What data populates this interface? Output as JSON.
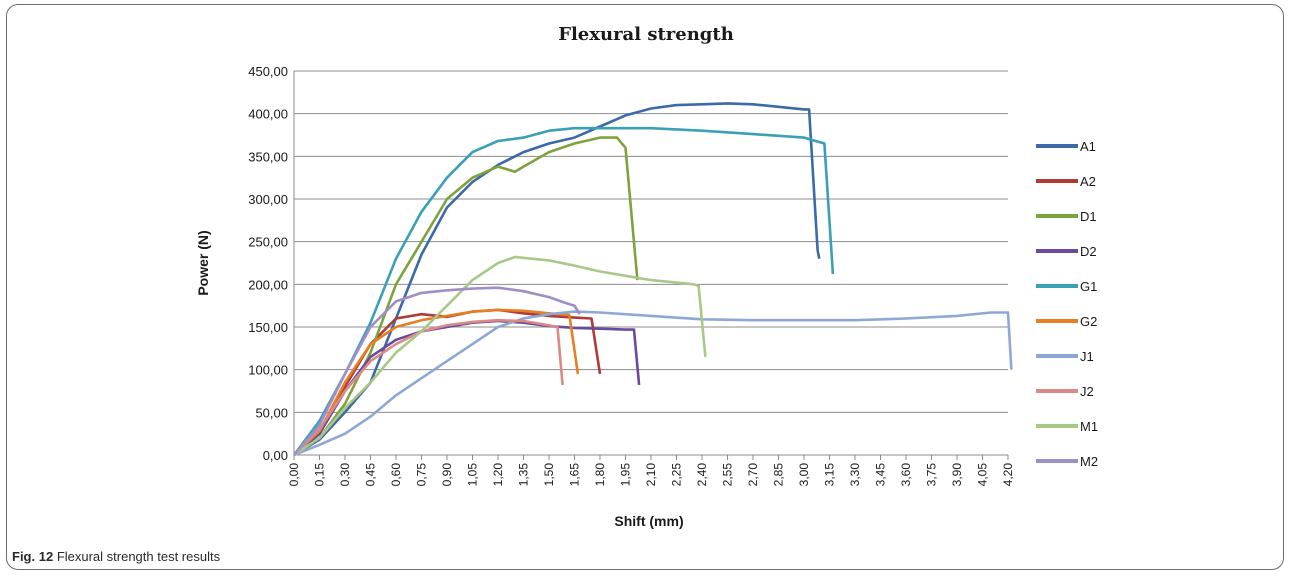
{
  "caption": {
    "label": "Fig. 12",
    "text": "Flexural strength test results"
  },
  "chart_data": {
    "type": "line",
    "title": "Flexural strength",
    "xlabel": "Shift (mm)",
    "ylabel": "Power (N)",
    "xlim": [
      0,
      4.2
    ],
    "ylim": [
      0,
      450
    ],
    "y_ticks": [
      "0,00",
      "50,00",
      "100,00",
      "150,00",
      "200,00",
      "250,00",
      "300,00",
      "350,00",
      "400,00",
      "450,00"
    ],
    "x_ticks": [
      "0,00",
      "0,15",
      "0,30",
      "0,45",
      "0,60",
      "0,75",
      "0,90",
      "1,05",
      "1,20",
      "1,35",
      "1,50",
      "1,65",
      "1,80",
      "1,95",
      "2,10",
      "2,25",
      "2,40",
      "2,55",
      "2,70",
      "2,85",
      "3,00",
      "3,15",
      "3,30",
      "3,45",
      "3,60",
      "3,75",
      "3,90",
      "4,05",
      "4,20"
    ],
    "grid": true,
    "legend_position": "right",
    "series": [
      {
        "name": "A1",
        "color": "#3c6aa8",
        "points": [
          [
            0,
            0
          ],
          [
            0.15,
            18
          ],
          [
            0.3,
            50
          ],
          [
            0.45,
            85
          ],
          [
            0.6,
            160
          ],
          [
            0.75,
            235
          ],
          [
            0.9,
            290
          ],
          [
            1.05,
            320
          ],
          [
            1.2,
            340
          ],
          [
            1.35,
            355
          ],
          [
            1.5,
            365
          ],
          [
            1.65,
            372
          ],
          [
            1.8,
            385
          ],
          [
            1.95,
            398
          ],
          [
            2.1,
            406
          ],
          [
            2.25,
            410
          ],
          [
            2.4,
            411
          ],
          [
            2.55,
            412
          ],
          [
            2.7,
            411
          ],
          [
            2.85,
            408
          ],
          [
            3.0,
            405
          ],
          [
            3.03,
            405
          ],
          [
            3.08,
            240
          ],
          [
            3.09,
            230
          ]
        ]
      },
      {
        "name": "A2",
        "color": "#b03a36",
        "points": [
          [
            0,
            0
          ],
          [
            0.15,
            25
          ],
          [
            0.3,
            80
          ],
          [
            0.45,
            130
          ],
          [
            0.6,
            160
          ],
          [
            0.75,
            165
          ],
          [
            0.9,
            162
          ],
          [
            1.05,
            168
          ],
          [
            1.2,
            170
          ],
          [
            1.35,
            166
          ],
          [
            1.5,
            163
          ],
          [
            1.65,
            161
          ],
          [
            1.75,
            160
          ],
          [
            1.8,
            95
          ]
        ]
      },
      {
        "name": "D1",
        "color": "#7ea33d",
        "points": [
          [
            0,
            0
          ],
          [
            0.15,
            20
          ],
          [
            0.3,
            60
          ],
          [
            0.45,
            120
          ],
          [
            0.6,
            200
          ],
          [
            0.75,
            250
          ],
          [
            0.9,
            300
          ],
          [
            1.05,
            325
          ],
          [
            1.2,
            338
          ],
          [
            1.3,
            332
          ],
          [
            1.35,
            338
          ],
          [
            1.5,
            355
          ],
          [
            1.65,
            365
          ],
          [
            1.8,
            372
          ],
          [
            1.9,
            372
          ],
          [
            1.95,
            360
          ],
          [
            2.02,
            205
          ]
        ]
      },
      {
        "name": "D2",
        "color": "#6a4a9a",
        "points": [
          [
            0,
            0
          ],
          [
            0.15,
            25
          ],
          [
            0.3,
            75
          ],
          [
            0.45,
            115
          ],
          [
            0.6,
            135
          ],
          [
            0.75,
            145
          ],
          [
            0.9,
            150
          ],
          [
            1.05,
            155
          ],
          [
            1.2,
            157
          ],
          [
            1.35,
            155
          ],
          [
            1.5,
            151
          ],
          [
            1.65,
            149
          ],
          [
            1.8,
            148
          ],
          [
            1.95,
            147
          ],
          [
            2.0,
            147
          ],
          [
            2.03,
            82
          ]
        ]
      },
      {
        "name": "G1",
        "color": "#3aa0b8",
        "points": [
          [
            0,
            0
          ],
          [
            0.15,
            40
          ],
          [
            0.3,
            95
          ],
          [
            0.45,
            155
          ],
          [
            0.6,
            230
          ],
          [
            0.75,
            285
          ],
          [
            0.9,
            325
          ],
          [
            1.05,
            355
          ],
          [
            1.2,
            368
          ],
          [
            1.35,
            372
          ],
          [
            1.5,
            380
          ],
          [
            1.65,
            383
          ],
          [
            1.8,
            383
          ],
          [
            2.1,
            383
          ],
          [
            2.4,
            380
          ],
          [
            2.7,
            376
          ],
          [
            3.0,
            372
          ],
          [
            3.12,
            365
          ],
          [
            3.17,
            212
          ]
        ]
      },
      {
        "name": "G2",
        "color": "#e67e22",
        "points": [
          [
            0,
            0
          ],
          [
            0.15,
            28
          ],
          [
            0.3,
            85
          ],
          [
            0.45,
            130
          ],
          [
            0.6,
            150
          ],
          [
            0.75,
            158
          ],
          [
            0.9,
            163
          ],
          [
            1.05,
            168
          ],
          [
            1.2,
            170
          ],
          [
            1.35,
            169
          ],
          [
            1.5,
            166
          ],
          [
            1.62,
            164
          ],
          [
            1.67,
            95
          ]
        ]
      },
      {
        "name": "J1",
        "color": "#8ea8d6",
        "points": [
          [
            0,
            0
          ],
          [
            0.15,
            12
          ],
          [
            0.3,
            25
          ],
          [
            0.45,
            45
          ],
          [
            0.6,
            70
          ],
          [
            0.75,
            90
          ],
          [
            0.9,
            110
          ],
          [
            1.05,
            130
          ],
          [
            1.2,
            150
          ],
          [
            1.35,
            160
          ],
          [
            1.5,
            165
          ],
          [
            1.65,
            168
          ],
          [
            1.8,
            167
          ],
          [
            2.1,
            163
          ],
          [
            2.4,
            159
          ],
          [
            2.7,
            158
          ],
          [
            3.0,
            158
          ],
          [
            3.3,
            158
          ],
          [
            3.6,
            160
          ],
          [
            3.9,
            163
          ],
          [
            4.1,
            167
          ],
          [
            4.2,
            167
          ],
          [
            4.22,
            100
          ]
        ]
      },
      {
        "name": "J2",
        "color": "#d98a88",
        "points": [
          [
            0,
            0
          ],
          [
            0.15,
            30
          ],
          [
            0.3,
            75
          ],
          [
            0.45,
            110
          ],
          [
            0.6,
            130
          ],
          [
            0.75,
            145
          ],
          [
            0.9,
            152
          ],
          [
            1.05,
            156
          ],
          [
            1.2,
            158
          ],
          [
            1.35,
            157
          ],
          [
            1.5,
            152
          ],
          [
            1.55,
            150
          ],
          [
            1.58,
            82
          ]
        ]
      },
      {
        "name": "M1",
        "color": "#a8c888",
        "points": [
          [
            0,
            0
          ],
          [
            0.15,
            20
          ],
          [
            0.3,
            55
          ],
          [
            0.45,
            85
          ],
          [
            0.6,
            120
          ],
          [
            0.75,
            145
          ],
          [
            0.9,
            175
          ],
          [
            1.05,
            205
          ],
          [
            1.2,
            225
          ],
          [
            1.3,
            232
          ],
          [
            1.5,
            228
          ],
          [
            1.65,
            222
          ],
          [
            1.8,
            215
          ],
          [
            1.95,
            210
          ],
          [
            2.1,
            205
          ],
          [
            2.25,
            202
          ],
          [
            2.35,
            200
          ],
          [
            2.38,
            198
          ],
          [
            2.42,
            115
          ]
        ]
      },
      {
        "name": "M2",
        "color": "#a08ec6",
        "points": [
          [
            0,
            0
          ],
          [
            0.15,
            35
          ],
          [
            0.3,
            95
          ],
          [
            0.45,
            150
          ],
          [
            0.6,
            180
          ],
          [
            0.75,
            190
          ],
          [
            0.9,
            193
          ],
          [
            1.05,
            195
          ],
          [
            1.2,
            196
          ],
          [
            1.35,
            192
          ],
          [
            1.5,
            185
          ],
          [
            1.6,
            178
          ],
          [
            1.65,
            175
          ],
          [
            1.68,
            165
          ]
        ]
      }
    ]
  }
}
